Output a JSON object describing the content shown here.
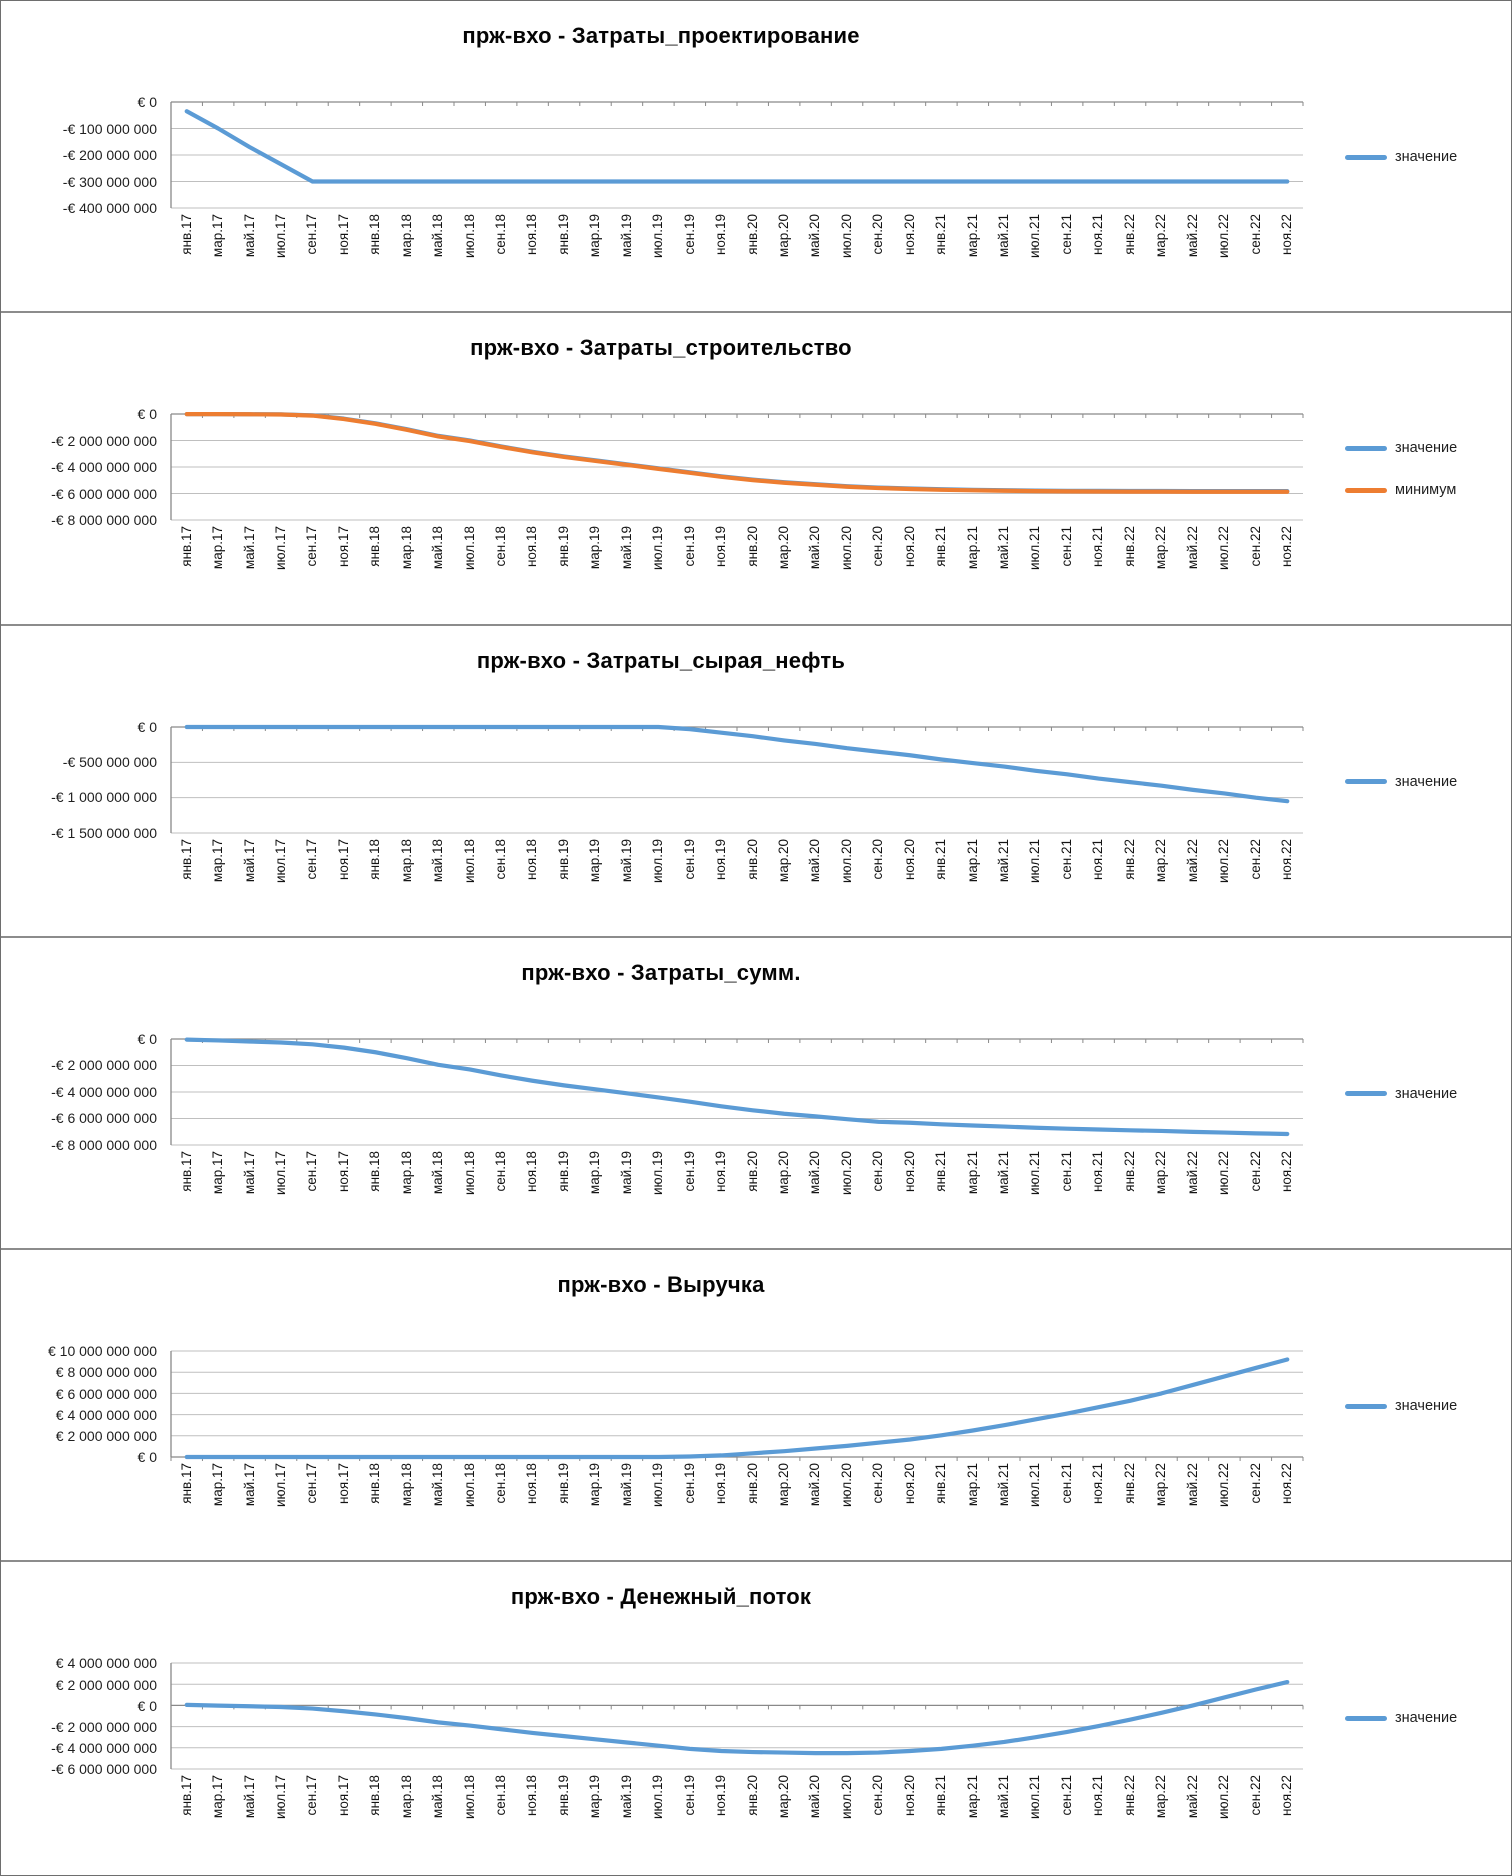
{
  "page": {
    "background": "#ffffff",
    "border_color": "#6e6e6e",
    "panel_divider_color": "#8c8c8c"
  },
  "colors": {
    "value_line": "#5b9bd5",
    "minimum_line": "#ed7d31",
    "gridline": "#bfbfbf",
    "axis_line": "#898989",
    "title_text": "#050505",
    "tick_text": "#1f1f1f"
  },
  "chart_data": [
    {
      "type": "line",
      "title": "прж-вхо - Затраты_проектирование",
      "xlabel": "",
      "ylabel": "",
      "grid": true,
      "legend_position": "right",
      "ylim_eur_bn": [
        -0.4,
        0
      ],
      "y_ticks": [
        {
          "label": "€ 0",
          "value_eur_bn": 0
        },
        {
          "label": "-€ 100 000 000",
          "value_eur_bn": -0.1
        },
        {
          "label": "-€ 200 000 000",
          "value_eur_bn": -0.2
        },
        {
          "label": "-€ 300 000 000",
          "value_eur_bn": -0.3
        },
        {
          "label": "-€ 400 000 000",
          "value_eur_bn": -0.4
        }
      ],
      "categories": [
        "янв.17",
        "мар.17",
        "май.17",
        "июл.17",
        "сен.17",
        "ноя.17",
        "янв.18",
        "мар.18",
        "май.18",
        "июл.18",
        "сен.18",
        "ноя.18",
        "янв.19",
        "мар.19",
        "май.19",
        "июл.19",
        "сен.19",
        "ноя.19",
        "янв.20",
        "мар.20",
        "май.20",
        "июл.20",
        "сен.20",
        "ноя.20",
        "янв.21",
        "мар.21",
        "май.21",
        "июл.21",
        "сен.21",
        "ноя.21",
        "янв.22",
        "мар.22",
        "май.22",
        "июл.22",
        "сен.22",
        "ноя.22"
      ],
      "series": [
        {
          "name": "значение",
          "color": "#5b9bd5",
          "values_eur_bn": [
            -0.035,
            -0.1,
            -0.17,
            -0.235,
            -0.3,
            -0.3,
            -0.3,
            -0.3,
            -0.3,
            -0.3,
            -0.3,
            -0.3,
            -0.3,
            -0.3,
            -0.3,
            -0.3,
            -0.3,
            -0.3,
            -0.3,
            -0.3,
            -0.3,
            -0.3,
            -0.3,
            -0.3,
            -0.3,
            -0.3,
            -0.3,
            -0.3,
            -0.3,
            -0.3,
            -0.3,
            -0.3,
            -0.3,
            -0.3,
            -0.3,
            -0.3
          ]
        }
      ]
    },
    {
      "type": "line",
      "title": "прж-вхо - Затраты_строительство",
      "xlabel": "",
      "ylabel": "",
      "grid": true,
      "legend_position": "right",
      "ylim_eur_bn": [
        -8,
        0
      ],
      "y_ticks": [
        {
          "label": "€ 0",
          "value_eur_bn": 0
        },
        {
          "label": "-€ 2 000 000 000",
          "value_eur_bn": -2
        },
        {
          "label": "-€ 4 000 000 000",
          "value_eur_bn": -4
        },
        {
          "label": "-€ 6 000 000 000",
          "value_eur_bn": -6
        },
        {
          "label": "-€ 8 000 000 000",
          "value_eur_bn": -8
        }
      ],
      "categories": [
        "янв.17",
        "мар.17",
        "май.17",
        "июл.17",
        "сен.17",
        "ноя.17",
        "янв.18",
        "мар.18",
        "май.18",
        "июл.18",
        "сен.18",
        "ноя.18",
        "янв.19",
        "мар.19",
        "май.19",
        "июл.19",
        "сен.19",
        "ноя.19",
        "янв.20",
        "мар.20",
        "май.20",
        "июл.20",
        "сен.20",
        "ноя.20",
        "янв.21",
        "мар.21",
        "май.21",
        "июл.21",
        "сен.21",
        "ноя.21",
        "янв.22",
        "мар.22",
        "май.22",
        "июл.22",
        "сен.22",
        "ноя.22"
      ],
      "series": [
        {
          "name": "значение",
          "color": "#5b9bd5",
          "values_eur_bn": [
            -0.01,
            -0.01,
            -0.02,
            -0.03,
            -0.1,
            -0.35,
            -0.7,
            -1.15,
            -1.65,
            -2.0,
            -2.45,
            -2.85,
            -3.2,
            -3.5,
            -3.8,
            -4.1,
            -4.4,
            -4.7,
            -4.95,
            -5.15,
            -5.3,
            -5.45,
            -5.55,
            -5.62,
            -5.68,
            -5.72,
            -5.75,
            -5.78,
            -5.8,
            -5.8,
            -5.81,
            -5.81,
            -5.82,
            -5.82,
            -5.82,
            -5.82
          ]
        },
        {
          "name": "минимум",
          "color": "#ed7d31",
          "values_eur_bn": [
            -0.01,
            -0.01,
            -0.02,
            -0.04,
            -0.12,
            -0.38,
            -0.74,
            -1.19,
            -1.69,
            -2.04,
            -2.49,
            -2.89,
            -3.24,
            -3.54,
            -3.84,
            -4.14,
            -4.44,
            -4.74,
            -4.99,
            -5.19,
            -5.34,
            -5.49,
            -5.59,
            -5.66,
            -5.72,
            -5.76,
            -5.79,
            -5.82,
            -5.84,
            -5.85,
            -5.86,
            -5.86,
            -5.87,
            -5.87,
            -5.87,
            -5.87
          ]
        }
      ]
    },
    {
      "type": "line",
      "title": "прж-вхо - Затраты_сырая_нефть",
      "xlabel": "",
      "ylabel": "",
      "grid": true,
      "legend_position": "right",
      "ylim_eur_bn": [
        -1.5,
        0
      ],
      "y_ticks": [
        {
          "label": "€ 0",
          "value_eur_bn": 0
        },
        {
          "label": "-€ 500 000 000",
          "value_eur_bn": -0.5
        },
        {
          "label": "-€ 1 000 000 000",
          "value_eur_bn": -1
        },
        {
          "label": "-€ 1 500 000 000",
          "value_eur_bn": -1.5
        }
      ],
      "categories": [
        "янв.17",
        "мар.17",
        "май.17",
        "июл.17",
        "сен.17",
        "ноя.17",
        "янв.18",
        "мар.18",
        "май.18",
        "июл.18",
        "сен.18",
        "ноя.18",
        "янв.19",
        "мар.19",
        "май.19",
        "июл.19",
        "сен.19",
        "ноя.19",
        "янв.20",
        "мар.20",
        "май.20",
        "июл.20",
        "сен.20",
        "ноя.20",
        "янв.21",
        "мар.21",
        "май.21",
        "июл.21",
        "сен.21",
        "ноя.21",
        "янв.22",
        "мар.22",
        "май.22",
        "июл.22",
        "сен.22",
        "ноя.22"
      ],
      "series": [
        {
          "name": "значение",
          "color": "#5b9bd5",
          "values_eur_bn": [
            0,
            0,
            0,
            0,
            0,
            0,
            0,
            0,
            0,
            0,
            0,
            0,
            0,
            0,
            0,
            0,
            -0.03,
            -0.08,
            -0.13,
            -0.19,
            -0.24,
            -0.3,
            -0.35,
            -0.4,
            -0.46,
            -0.51,
            -0.56,
            -0.62,
            -0.67,
            -0.73,
            -0.78,
            -0.83,
            -0.89,
            -0.94,
            -1.0,
            -1.05
          ]
        }
      ]
    },
    {
      "type": "line",
      "title": "прж-вхо - Затраты_сумм.",
      "xlabel": "",
      "ylabel": "",
      "grid": true,
      "legend_position": "right",
      "ylim_eur_bn": [
        -8,
        0
      ],
      "y_ticks": [
        {
          "label": "€ 0",
          "value_eur_bn": 0
        },
        {
          "label": "-€ 2 000 000 000",
          "value_eur_bn": -2
        },
        {
          "label": "-€ 4 000 000 000",
          "value_eur_bn": -4
        },
        {
          "label": "-€ 6 000 000 000",
          "value_eur_bn": -6
        },
        {
          "label": "-€ 8 000 000 000",
          "value_eur_bn": -8
        }
      ],
      "categories": [
        "янв.17",
        "мар.17",
        "май.17",
        "июл.17",
        "сен.17",
        "ноя.17",
        "янв.18",
        "мар.18",
        "май.18",
        "июл.18",
        "сен.18",
        "ноя.18",
        "янв.19",
        "мар.19",
        "май.19",
        "июл.19",
        "сен.19",
        "ноя.19",
        "янв.20",
        "мар.20",
        "май.20",
        "июл.20",
        "сен.20",
        "ноя.20",
        "янв.21",
        "мар.21",
        "май.21",
        "июл.21",
        "сен.21",
        "ноя.21",
        "янв.22",
        "мар.22",
        "май.22",
        "июл.22",
        "сен.22",
        "ноя.22"
      ],
      "series": [
        {
          "name": "значение",
          "color": "#5b9bd5",
          "values_eur_bn": [
            -0.045,
            -0.11,
            -0.19,
            -0.265,
            -0.4,
            -0.65,
            -1.0,
            -1.45,
            -1.95,
            -2.3,
            -2.75,
            -3.15,
            -3.5,
            -3.8,
            -4.1,
            -4.41,
            -4.73,
            -5.08,
            -5.38,
            -5.64,
            -5.84,
            -6.05,
            -6.25,
            -6.32,
            -6.44,
            -6.53,
            -6.61,
            -6.7,
            -6.77,
            -6.83,
            -6.89,
            -6.94,
            -7.01,
            -7.06,
            -7.12,
            -7.17
          ]
        }
      ]
    },
    {
      "type": "line",
      "title": "прж-вхо - Выручка",
      "xlabel": "",
      "ylabel": "",
      "grid": true,
      "legend_position": "right",
      "ylim_eur_bn": [
        0,
        10
      ],
      "y_ticks": [
        {
          "label": "€ 10 000 000 000",
          "value_eur_bn": 10
        },
        {
          "label": "€ 8 000 000 000",
          "value_eur_bn": 8
        },
        {
          "label": "€ 6 000 000 000",
          "value_eur_bn": 6
        },
        {
          "label": "€ 4 000 000 000",
          "value_eur_bn": 4
        },
        {
          "label": "€ 2 000 000 000",
          "value_eur_bn": 2
        },
        {
          "label": "€ 0",
          "value_eur_bn": 0
        }
      ],
      "categories": [
        "янв.17",
        "мар.17",
        "май.17",
        "июл.17",
        "сен.17",
        "ноя.17",
        "янв.18",
        "мар.18",
        "май.18",
        "июл.18",
        "сен.18",
        "ноя.18",
        "янв.19",
        "мар.19",
        "май.19",
        "июл.19",
        "сен.19",
        "ноя.19",
        "янв.20",
        "мар.20",
        "май.20",
        "июл.20",
        "сен.20",
        "ноя.20",
        "янв.21",
        "мар.21",
        "май.21",
        "июл.21",
        "сен.21",
        "ноя.21",
        "янв.22",
        "мар.22",
        "май.22",
        "июл.22",
        "сен.22",
        "ноя.22"
      ],
      "series": [
        {
          "name": "значение",
          "color": "#5b9bd5",
          "values_eur_bn": [
            0,
            0,
            0,
            0,
            0,
            0,
            0,
            0,
            0,
            0,
            0,
            0,
            0,
            0,
            0,
            0,
            0.05,
            0.15,
            0.35,
            0.55,
            0.8,
            1.05,
            1.35,
            1.65,
            2.05,
            2.5,
            3.0,
            3.55,
            4.1,
            4.7,
            5.3,
            6.0,
            6.8,
            7.6,
            8.4,
            9.2
          ]
        }
      ]
    },
    {
      "type": "line",
      "title": "прж-вхо - Денежный_поток",
      "xlabel": "",
      "ylabel": "",
      "grid": true,
      "legend_position": "right",
      "ylim_eur_bn": [
        -6,
        4
      ],
      "y_ticks": [
        {
          "label": "€ 4 000 000 000",
          "value_eur_bn": 4
        },
        {
          "label": "€ 2 000 000 000",
          "value_eur_bn": 2
        },
        {
          "label": "€ 0",
          "value_eur_bn": 0
        },
        {
          "label": "-€ 2 000 000 000",
          "value_eur_bn": -2
        },
        {
          "label": "-€ 4 000 000 000",
          "value_eur_bn": -4
        },
        {
          "label": "-€ 6 000 000 000",
          "value_eur_bn": -6
        }
      ],
      "categories": [
        "янв.17",
        "мар.17",
        "май.17",
        "июл.17",
        "сен.17",
        "ноя.17",
        "янв.18",
        "мар.18",
        "май.18",
        "июл.18",
        "сен.18",
        "ноя.18",
        "янв.19",
        "мар.19",
        "май.19",
        "июл.19",
        "сен.19",
        "ноя.19",
        "янв.20",
        "мар.20",
        "май.20",
        "июл.20",
        "сен.20",
        "ноя.20",
        "янв.21",
        "мар.21",
        "май.21",
        "июл.21",
        "сен.21",
        "ноя.21",
        "янв.22",
        "мар.22",
        "май.22",
        "июл.22",
        "сен.22",
        "ноя.22"
      ],
      "series": [
        {
          "name": "значение",
          "color": "#5b9bd5",
          "values_eur_bn": [
            0.05,
            -0.02,
            -0.08,
            -0.15,
            -0.3,
            -0.55,
            -0.85,
            -1.2,
            -1.6,
            -1.9,
            -2.25,
            -2.6,
            -2.9,
            -3.2,
            -3.5,
            -3.8,
            -4.1,
            -4.3,
            -4.4,
            -4.45,
            -4.5,
            -4.5,
            -4.45,
            -4.3,
            -4.1,
            -3.8,
            -3.45,
            -3.0,
            -2.5,
            -1.95,
            -1.35,
            -0.7,
            0.0,
            0.75,
            1.5,
            2.2
          ]
        }
      ]
    }
  ]
}
